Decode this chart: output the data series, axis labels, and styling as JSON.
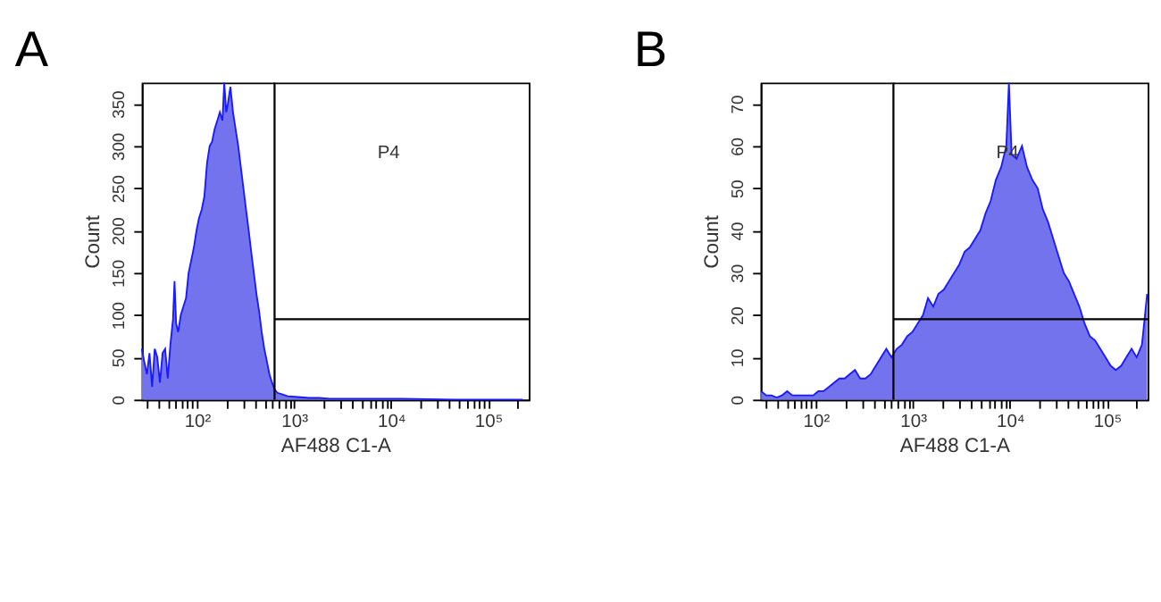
{
  "chart_data": [
    {
      "type": "area",
      "title": "A",
      "xlabel": "AF488 C1-A",
      "ylabel": "Count",
      "log": "x",
      "xlim": [
        27,
        262144
      ],
      "ylim": [
        0,
        375
      ],
      "xticks": [
        {
          "value": 30,
          "label": null
        },
        {
          "value": 40,
          "label": null
        },
        {
          "value": 50,
          "label": null
        },
        {
          "value": 60,
          "label": null
        },
        {
          "value": 70,
          "label": null
        },
        {
          "value": 80,
          "label": null
        },
        {
          "value": 90,
          "label": null
        },
        {
          "value": 100,
          "label": "10²"
        },
        {
          "value": 200,
          "label": null
        },
        {
          "value": 300,
          "label": null
        },
        {
          "value": 400,
          "label": null
        },
        {
          "value": 500,
          "label": null
        },
        {
          "value": 600,
          "label": null
        },
        {
          "value": 700,
          "label": null
        },
        {
          "value": 800,
          "label": null
        },
        {
          "value": 900,
          "label": null
        },
        {
          "value": 1000,
          "label": "10³"
        },
        {
          "value": 2000,
          "label": null
        },
        {
          "value": 3000,
          "label": null
        },
        {
          "value": 4000,
          "label": null
        },
        {
          "value": 5000,
          "label": null
        },
        {
          "value": 6000,
          "label": null
        },
        {
          "value": 7000,
          "label": null
        },
        {
          "value": 8000,
          "label": null
        },
        {
          "value": 9000,
          "label": null
        },
        {
          "value": 10000,
          "label": "10⁴"
        },
        {
          "value": 20000,
          "label": null
        },
        {
          "value": 30000,
          "label": null
        },
        {
          "value": 40000,
          "label": null
        },
        {
          "value": 50000,
          "label": null
        },
        {
          "value": 60000,
          "label": null
        },
        {
          "value": 70000,
          "label": null
        },
        {
          "value": 80000,
          "label": null
        },
        {
          "value": 90000,
          "label": null
        },
        {
          "value": 100000,
          "label": "10⁵"
        },
        {
          "value": 200000,
          "label": null
        }
      ],
      "yticks": [
        0,
        50,
        100,
        150,
        200,
        250,
        300,
        350
      ],
      "series": [
        {
          "color": "#7373ee",
          "x": [
            27,
            28.6,
            30.5,
            32.4,
            34.5,
            36.7,
            39.0,
            41.5,
            44.2,
            47.0,
            50.0,
            53.2,
            56.6,
            58.7,
            61.0,
            64.0,
            68.1,
            72.4,
            77.1,
            82.0,
            87.3,
            92.9,
            98.8,
            105,
            112,
            119,
            127,
            135,
            143,
            152,
            162,
            172,
            183,
            191,
            200,
            208,
            221,
            235,
            250,
            266,
            283,
            301,
            320,
            341,
            362,
            385,
            410,
            436,
            464,
            494,
            525,
            558,
            594,
            632,
            673,
            762,
            861,
            1100,
            1420,
            1810,
            2320,
            3810,
            13100,
            45300,
            226000
          ],
          "values": [
            60,
            45,
            30,
            55,
            15,
            60,
            50,
            20,
            55,
            60,
            25,
            65,
            95,
            140,
            90,
            80,
            100,
            110,
            120,
            150,
            165,
            180,
            200,
            215,
            225,
            240,
            280,
            300,
            305,
            320,
            330,
            340,
            330,
            375,
            340,
            350,
            370,
            340,
            320,
            300,
            275,
            250,
            225,
            200,
            175,
            150,
            125,
            105,
            80,
            60,
            45,
            30,
            20,
            12,
            8,
            6,
            4,
            3,
            2,
            2,
            1,
            1,
            1,
            0,
            0
          ]
        },
        {
          "type": "line",
          "color": "#000000",
          "x": [
            630,
            262144
          ],
          "values": [
            95,
            95
          ]
        }
      ],
      "ref_lines": [
        {
          "axis": "x",
          "value": 630,
          "color": "#000000"
        }
      ],
      "annotations": [
        "P4"
      ]
    },
    {
      "type": "area",
      "title": "B",
      "xlabel": "AF488 C1-A",
      "ylabel": "Count",
      "log": "x",
      "xlim": [
        27,
        262144
      ],
      "ylim": [
        0,
        75
      ],
      "xticks": [
        {
          "value": 30,
          "label": null
        },
        {
          "value": 40,
          "label": null
        },
        {
          "value": 50,
          "label": null
        },
        {
          "value": 60,
          "label": null
        },
        {
          "value": 70,
          "label": null
        },
        {
          "value": 80,
          "label": null
        },
        {
          "value": 90,
          "label": null
        },
        {
          "value": 100,
          "label": "10²"
        },
        {
          "value": 200,
          "label": null
        },
        {
          "value": 300,
          "label": null
        },
        {
          "value": 400,
          "label": null
        },
        {
          "value": 500,
          "label": null
        },
        {
          "value": 600,
          "label": null
        },
        {
          "value": 700,
          "label": null
        },
        {
          "value": 800,
          "label": null
        },
        {
          "value": 900,
          "label": null
        },
        {
          "value": 1000,
          "label": "10³"
        },
        {
          "value": 2000,
          "label": null
        },
        {
          "value": 3000,
          "label": null
        },
        {
          "value": 4000,
          "label": null
        },
        {
          "value": 5000,
          "label": null
        },
        {
          "value": 6000,
          "label": null
        },
        {
          "value": 7000,
          "label": null
        },
        {
          "value": 8000,
          "label": null
        },
        {
          "value": 9000,
          "label": null
        },
        {
          "value": 10000,
          "label": "10⁴"
        },
        {
          "value": 20000,
          "label": null
        },
        {
          "value": 30000,
          "label": null
        },
        {
          "value": 40000,
          "label": null
        },
        {
          "value": 50000,
          "label": null
        },
        {
          "value": 60000,
          "label": null
        },
        {
          "value": 70000,
          "label": null
        },
        {
          "value": 80000,
          "label": null
        },
        {
          "value": 90000,
          "label": null
        },
        {
          "value": 100000,
          "label": "10⁵"
        },
        {
          "value": 200000,
          "label": null
        }
      ],
      "yticks": [
        0,
        10,
        20,
        30,
        40,
        50,
        60,
        70
      ],
      "series": [
        {
          "color": "#7373ee",
          "x": [
            27.3,
            30.8,
            34.9,
            39.5,
            44.8,
            50.6,
            57.3,
            64.9,
            73.5,
            83.0,
            94.0,
            106,
            120,
            136,
            154,
            175,
            198,
            223,
            253,
            286,
            324,
            367,
            415,
            470,
            532,
            602,
            681,
            771,
            873,
            988,
            1120,
            1270,
            1430,
            1620,
            1830,
            2080,
            2350,
            2660,
            3010,
            3410,
            3850,
            4360,
            4940,
            5590,
            6320,
            7160,
            8110,
            9170,
            9750,
            10400,
            11700,
            13300,
            15000,
            17000,
            19300,
            21800,
            24700,
            27900,
            31600,
            35800,
            40500,
            45800,
            51900,
            58700,
            66500,
            75200,
            85100,
            96400,
            109000,
            123000,
            140000,
            158000,
            179000,
            202000,
            229000,
            259000
          ],
          "values": [
            2,
            1,
            1,
            0.5,
            1,
            2,
            1,
            1,
            1,
            1,
            1,
            2,
            2,
            3,
            4,
            5,
            5,
            6,
            7,
            5,
            5,
            6,
            8,
            10,
            12,
            10,
            12,
            13,
            15,
            16,
            18,
            20,
            24,
            22,
            25,
            26,
            28,
            30,
            32,
            35,
            36,
            38,
            40,
            44,
            47,
            52,
            55,
            60,
            75,
            58,
            57,
            60,
            55,
            52,
            50,
            45,
            42,
            38,
            34,
            30,
            28,
            25,
            22,
            18,
            15,
            14,
            12,
            10,
            8,
            7,
            8,
            10,
            12,
            10,
            13,
            25
          ]
        },
        {
          "type": "line",
          "color": "#000000",
          "x": [
            630,
            262144
          ],
          "values": [
            19,
            19
          ]
        }
      ],
      "ref_lines": [
        {
          "axis": "x",
          "value": 630,
          "color": "#000000"
        }
      ],
      "annotations": [
        "P4"
      ]
    }
  ]
}
